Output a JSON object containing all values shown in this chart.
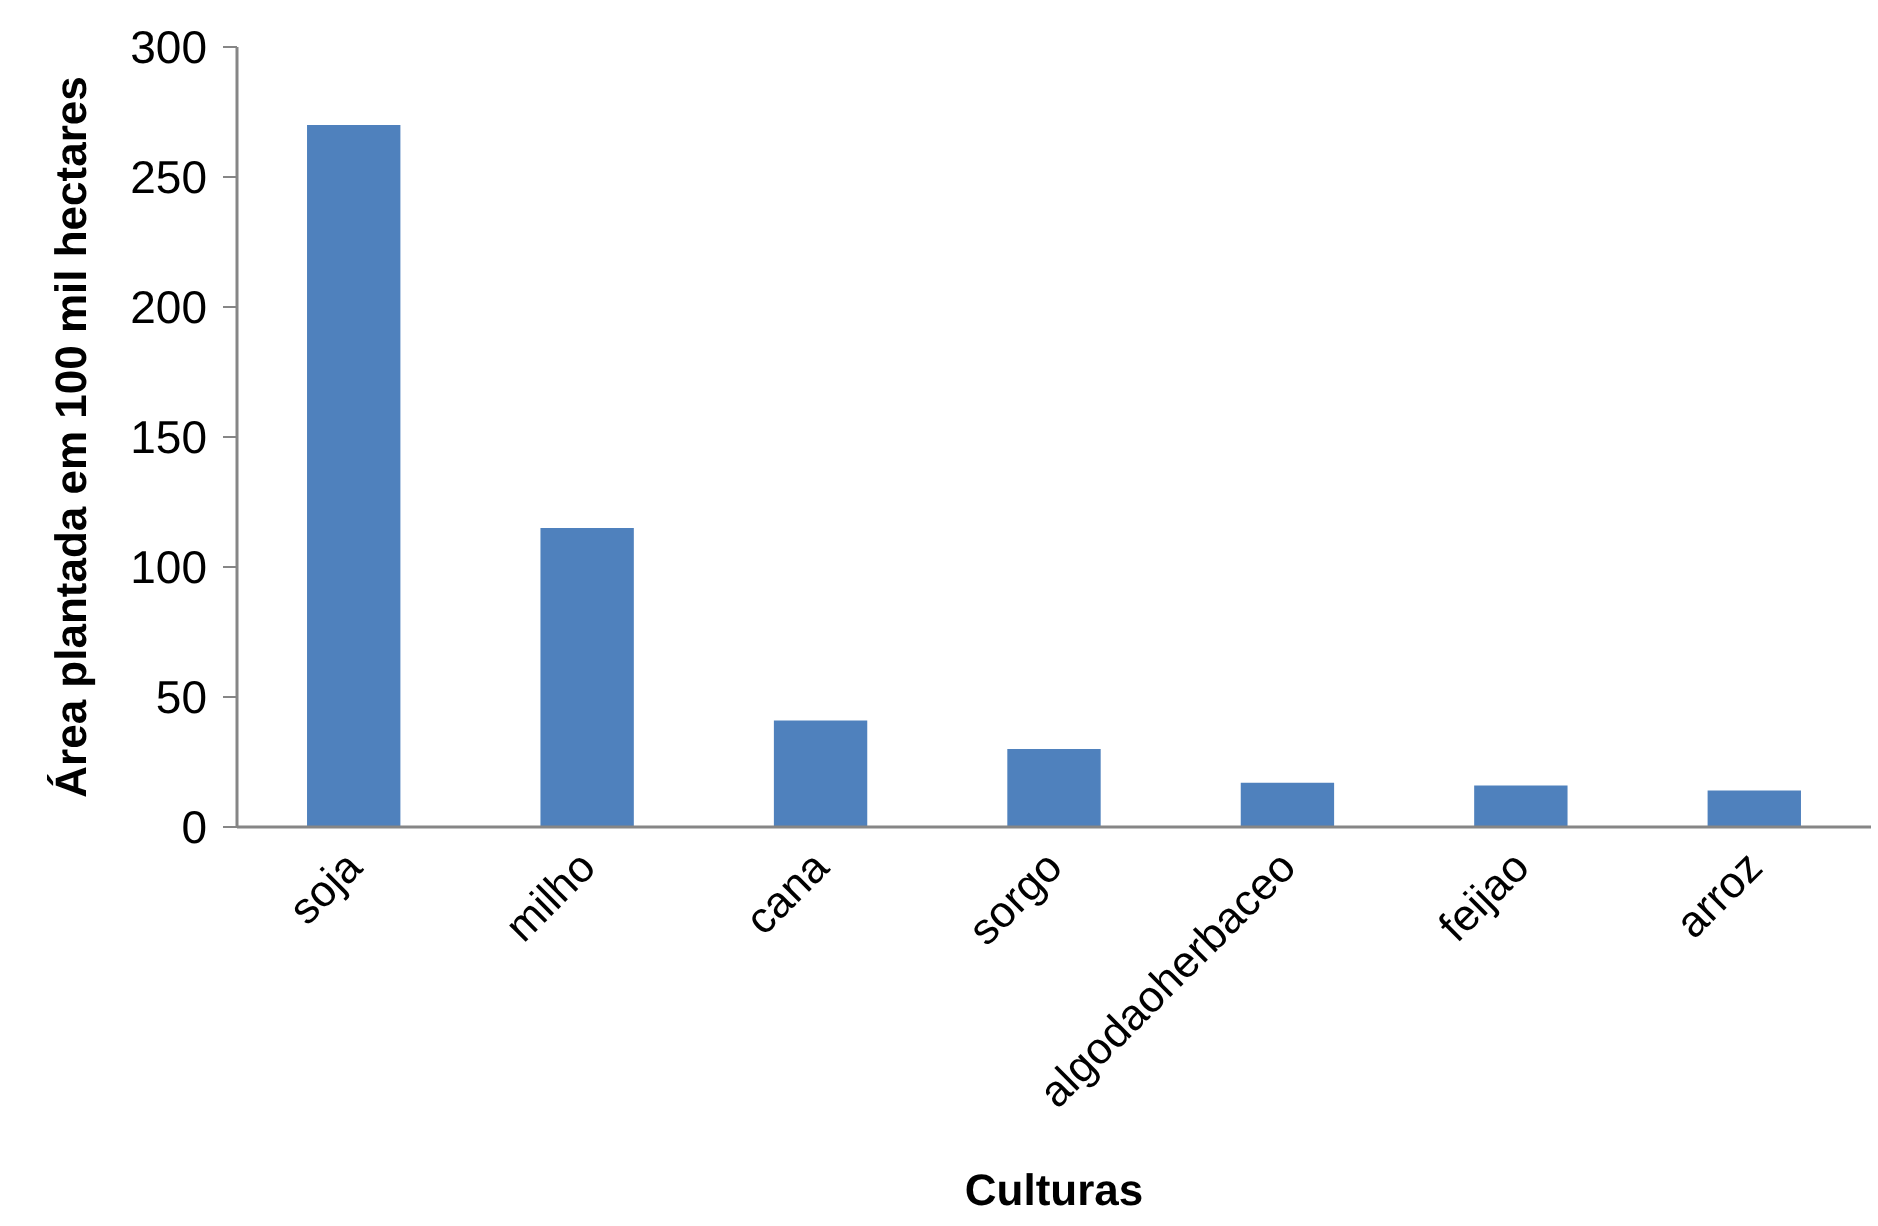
{
  "chart_data": {
    "type": "bar",
    "xlabel": "Culturas",
    "ylabel": "Área plantada em 100 mil hectares",
    "categories": [
      "soja",
      "milho",
      "cana",
      "sorgo",
      "algodaoherbaceo",
      "feijao",
      "arroz"
    ],
    "values": [
      270,
      115,
      41,
      30,
      17,
      16,
      14
    ],
    "color": "#4f81bd",
    "ylim": [
      0,
      300
    ],
    "yticks": [
      0,
      50,
      100,
      150,
      200,
      250,
      300
    ]
  }
}
